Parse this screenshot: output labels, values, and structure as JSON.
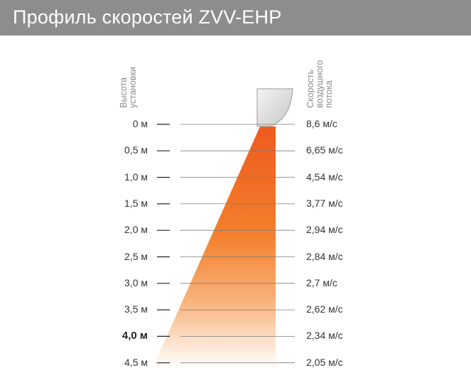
{
  "title": "Профиль скоростей ZVV-EHP",
  "left_axis_label": [
    "Высота",
    "установки"
  ],
  "right_axis_label": [
    "Скорость",
    "воздушного",
    "потока"
  ],
  "rows": [
    {
      "height": "0 м",
      "speed": "8,6 м/с",
      "bold": false
    },
    {
      "height": "0,5 м",
      "speed": "6,65 м/с",
      "bold": false
    },
    {
      "height": "1,0 м",
      "speed": "4,54 м/с",
      "bold": false
    },
    {
      "height": "1,5 м",
      "speed": "3,77 м/с",
      "bold": false
    },
    {
      "height": "2,0 м",
      "speed": "2,94 м/с",
      "bold": false
    },
    {
      "height": "2,5 м",
      "speed": "2,84 м/с",
      "bold": false
    },
    {
      "height": "3,0 м",
      "speed": "2,7 м/с",
      "bold": false
    },
    {
      "height": "3,5 м",
      "speed": "2,62 м/с",
      "bold": false
    },
    {
      "height": "4,0 м",
      "speed": "2,34 м/с",
      "bold": true
    },
    {
      "height": "4,5 м",
      "speed": "2,05 м/с",
      "bold": false
    }
  ],
  "colors": {
    "header_bg": "#8b8d8e",
    "airflow_top": "#ef5a1e",
    "airflow_bottom": "#ffffff"
  }
}
